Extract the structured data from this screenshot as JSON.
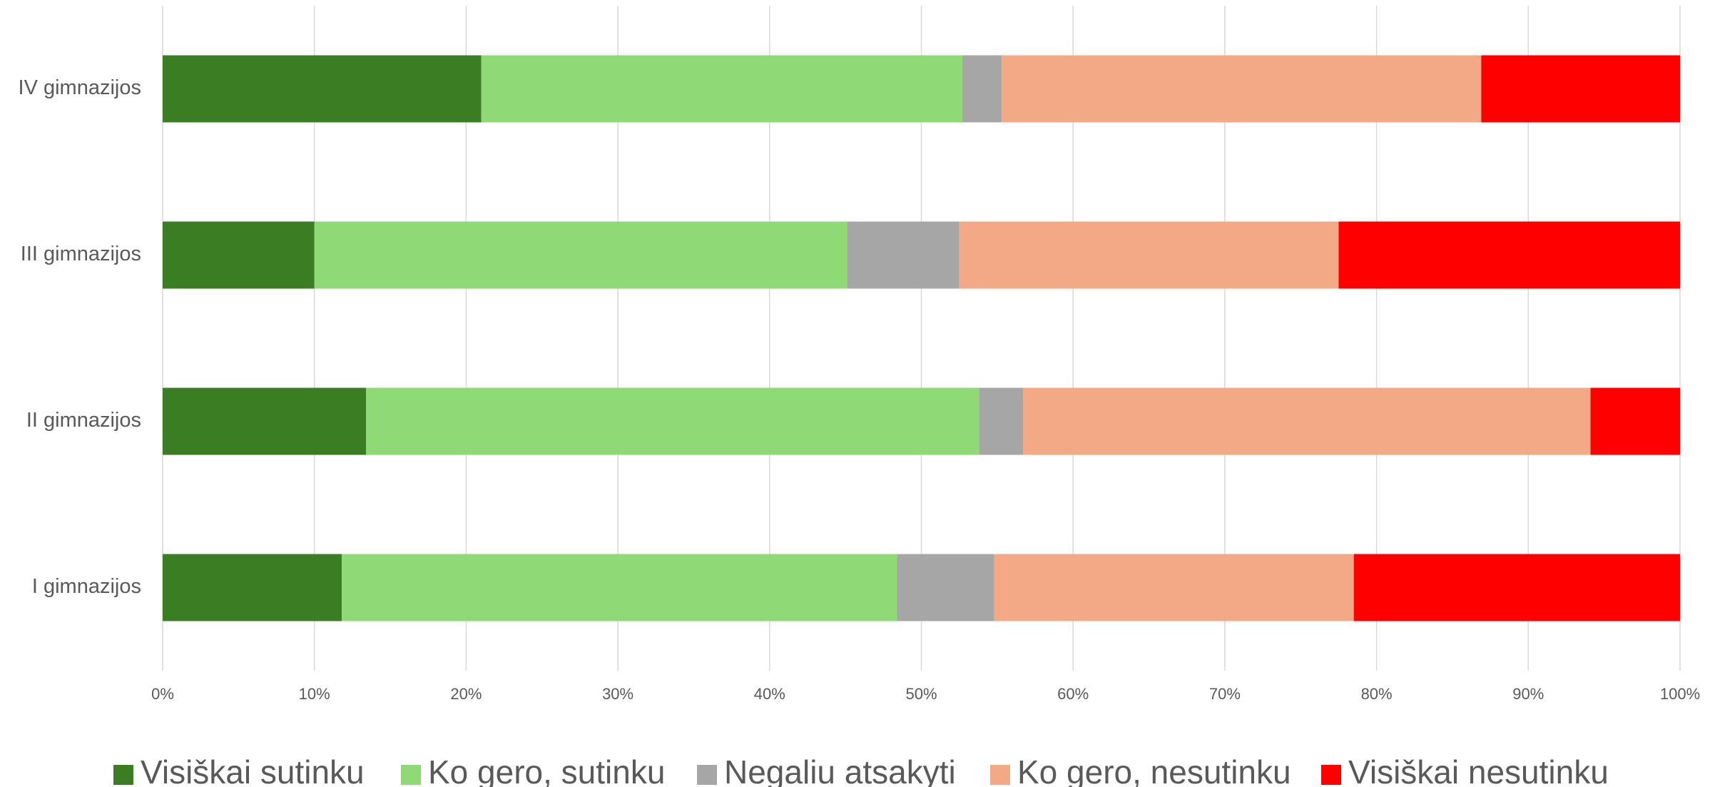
{
  "chart_data": {
    "type": "stacked_bar_horizontal",
    "categories": [
      "I gimnazijos",
      "II gimnazijos",
      "III gimnazijos",
      "IV gimnazijos"
    ],
    "series": [
      {
        "name": "Visiškai sutinku",
        "color": "#3a7d22",
        "values": [
          11.8,
          13.4,
          10.0,
          21.0
        ]
      },
      {
        "name": "Ko gero, sutinku",
        "color": "#8fd977",
        "values": [
          36.6,
          40.4,
          35.1,
          31.7
        ]
      },
      {
        "name": "Negaliu atsakyti",
        "color": "#a6a6a6",
        "values": [
          6.4,
          2.9,
          7.4,
          2.6
        ]
      },
      {
        "name": "Ko gero, nesutinku",
        "color": "#f3a985",
        "values": [
          23.7,
          37.4,
          25.0,
          31.6
        ]
      },
      {
        "name": "Visiškai nesutinku",
        "color": "#ff0000",
        "values": [
          21.5,
          5.9,
          22.5,
          13.1
        ]
      }
    ],
    "xlim": [
      0,
      100
    ],
    "xticks": [
      {
        "value": 0,
        "label": "0%"
      },
      {
        "value": 10,
        "label": "10%"
      },
      {
        "value": 20,
        "label": "20%"
      },
      {
        "value": 30,
        "label": "30%"
      },
      {
        "value": 40,
        "label": "40%"
      },
      {
        "value": 50,
        "label": "50%"
      },
      {
        "value": 60,
        "label": "60%"
      },
      {
        "value": 70,
        "label": "70%"
      },
      {
        "value": 80,
        "label": "80%"
      },
      {
        "value": 90,
        "label": "90%"
      },
      {
        "value": 100,
        "label": "100%"
      }
    ],
    "grid": true,
    "legend": "bottom"
  }
}
